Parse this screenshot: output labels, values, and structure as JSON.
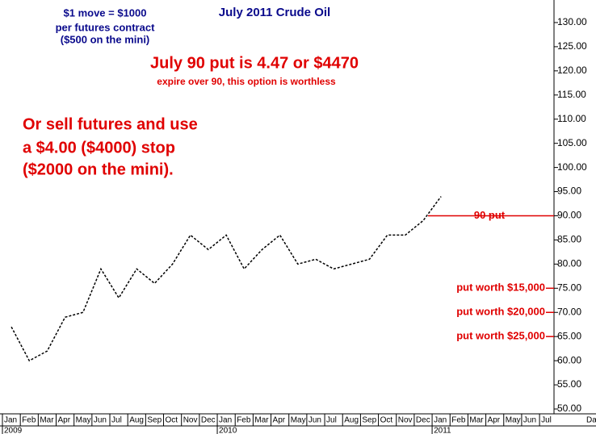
{
  "chart_data": {
    "type": "line",
    "title": "July 2011 Crude Oil",
    "annotations": [
      "$1 move = $1000",
      "per futures contract",
      "($500 on the mini)"
    ],
    "headline": "July 90 put is 4.47 or $4470",
    "subheadline": "expire over 90, this option is worthless",
    "note": [
      "Or sell futures and use",
      "a $4.00 ($4000) stop",
      "($2000 on the mini)."
    ],
    "categories": [
      "Jan",
      "Feb",
      "Mar",
      "Apr",
      "May",
      "Jun",
      "Jul",
      "Aug",
      "Sep",
      "Oct",
      "Nov",
      "Dec",
      "Jan",
      "Feb",
      "Mar",
      "Apr",
      "May",
      "Jun",
      "Jul",
      "Aug",
      "Sep",
      "Oct",
      "Nov",
      "Dec",
      "Jan",
      "Feb",
      "Mar",
      "Apr",
      "May",
      "Jun",
      "Jul"
    ],
    "year_labels": [
      "2009",
      "2010",
      "2011"
    ],
    "x_label": "Da",
    "series": [
      {
        "name": "Crude Oil",
        "color": "#000000",
        "values": [
          67,
          60,
          62,
          69,
          70,
          79,
          73,
          79,
          76,
          80,
          86,
          83,
          86,
          79,
          83,
          86,
          80,
          81,
          79,
          80,
          81,
          86,
          86,
          89,
          94,
          null,
          null,
          null,
          null,
          null,
          null
        ]
      }
    ],
    "reference_lines": [
      {
        "value": 90,
        "label": "90 put"
      },
      {
        "value": 75,
        "label": "put worth $15,000"
      },
      {
        "value": 70,
        "label": "put worth $20,000"
      },
      {
        "value": 65,
        "label": "put worth $25,000"
      }
    ],
    "ylim": [
      49,
      134
    ],
    "yticks": [
      {
        "value": 50,
        "label": "50.00"
      },
      {
        "value": 55,
        "label": "55.00"
      },
      {
        "value": 60,
        "label": "60.00"
      },
      {
        "value": 65,
        "label": "65.00"
      },
      {
        "value": 70,
        "label": "70.00"
      },
      {
        "value": 75,
        "label": "75.00"
      },
      {
        "value": 80,
        "label": "80.00"
      },
      {
        "value": 85,
        "label": "85.00"
      },
      {
        "value": 90,
        "label": "90.00"
      },
      {
        "value": 95,
        "label": "95.00"
      },
      {
        "value": 100,
        "label": "100.00"
      },
      {
        "value": 105,
        "label": "105.00"
      },
      {
        "value": 110,
        "label": "110.00"
      },
      {
        "value": 115,
        "label": "115.00"
      },
      {
        "value": 120,
        "label": "120.00"
      },
      {
        "value": 125,
        "label": "125.00"
      },
      {
        "value": 130,
        "label": "130.00"
      }
    ],
    "grid": false
  }
}
